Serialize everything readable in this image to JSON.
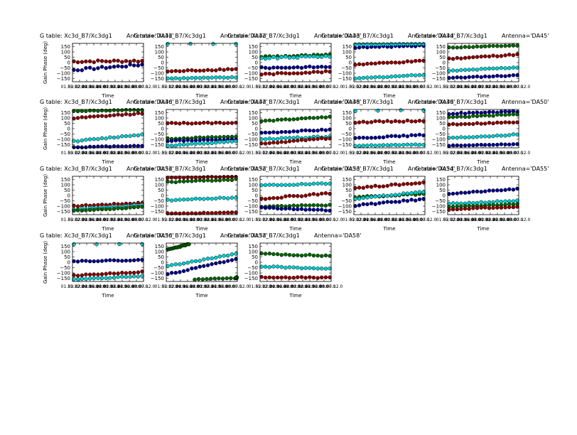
{
  "figure": {
    "title_prefix": "G table: Xc3d_B7/Xc3dg1",
    "xlabel": "Time",
    "ylabel": "Gain Phase (deg)",
    "xticks": [
      "01:55:12.0",
      "02:02:24.0",
      "02:09:36.0",
      "02:16:48.0",
      "02:24:00.0",
      "02:31:12.0",
      "02:38:24.0",
      "02:45:36.0",
      "02:52:48.0",
      "03:00:00.0",
      "03:07:12.0"
    ],
    "yticks": [
      "150",
      "100",
      "50",
      "0",
      "−50",
      "−100",
      "−150"
    ]
  },
  "colors": {
    "navy": "#00008b",
    "darkred": "#8b0000",
    "darkgreen": "#006400",
    "cyan": "#00ced1"
  },
  "chart_data": {
    "type": "scatter",
    "ylim": [
      -180,
      180
    ],
    "xlim": [
      0,
      1
    ],
    "grid": false,
    "legend": "none",
    "panels": [
      {
        "antenna": "Antenna='DA41'",
        "series": [
          {
            "color": "darkred",
            "start": 10,
            "end": 15,
            "wobble": 20
          },
          {
            "color": "navy",
            "start": -70,
            "end": -20,
            "wobble": 20
          }
        ]
      },
      {
        "antenna": "Antenna='DA42'",
        "series": [
          {
            "color": "cyan",
            "start": 175,
            "end": 175,
            "wobble": 3,
            "sparse": true
          },
          {
            "color": "darkred",
            "start": -85,
            "end": -60,
            "wobble": 12
          },
          {
            "color": "cyan",
            "start": -150,
            "end": -140,
            "wobble": 8
          }
        ]
      },
      {
        "antenna": "Antenna='DA43'",
        "series": [
          {
            "color": "darkgreen",
            "start": 55,
            "end": 70,
            "wobble": 15
          },
          {
            "color": "cyan",
            "start": 40,
            "end": 60,
            "wobble": 15
          },
          {
            "color": "navy",
            "start": -50,
            "end": -40,
            "wobble": 12
          },
          {
            "color": "darkred",
            "start": -110,
            "end": -85,
            "wobble": 12
          }
        ]
      },
      {
        "antenna": "Antenna='DA44'",
        "series": [
          {
            "color": "navy",
            "start": 140,
            "end": 160,
            "wobble": 10
          },
          {
            "color": "cyan",
            "start": 170,
            "end": 175,
            "wobble": 4
          },
          {
            "color": "darkred",
            "start": -20,
            "end": 15,
            "wobble": 10
          },
          {
            "color": "cyan",
            "start": -150,
            "end": -115,
            "wobble": 8
          }
        ]
      },
      {
        "antenna": "Antenna='DA45'",
        "series": [
          {
            "color": "darkgreen",
            "start": 140,
            "end": 160,
            "wobble": 6
          },
          {
            "color": "darkred",
            "start": 35,
            "end": 75,
            "wobble": 10
          },
          {
            "color": "cyan",
            "start": -80,
            "end": -45,
            "wobble": 10
          },
          {
            "color": "navy",
            "start": -145,
            "end": -120,
            "wobble": 8
          }
        ]
      },
      {
        "antenna": "Antenna='DA46'",
        "series": [
          {
            "color": "darkgreen",
            "start": 165,
            "end": 175,
            "wobble": 6
          },
          {
            "color": "darkred",
            "start": 95,
            "end": 145,
            "wobble": 12
          },
          {
            "color": "cyan",
            "start": -120,
            "end": -55,
            "wobble": 10
          },
          {
            "color": "navy",
            "start": -175,
            "end": -160,
            "wobble": 6
          }
        ]
      },
      {
        "antenna": "Antenna='DA47'",
        "series": [
          {
            "color": "darkred",
            "start": 50,
            "end": 55,
            "wobble": 10
          },
          {
            "color": "darkgreen",
            "start": -95,
            "end": -75,
            "wobble": 8
          },
          {
            "color": "navy",
            "start": -115,
            "end": -100,
            "wobble": 8
          },
          {
            "color": "cyan",
            "start": -160,
            "end": -120,
            "wobble": 10
          }
        ]
      },
      {
        "antenna": "Antenna='DA48'",
        "series": [
          {
            "color": "darkgreen",
            "start": 70,
            "end": 110,
            "wobble": 8
          },
          {
            "color": "navy",
            "start": -40,
            "end": -10,
            "wobble": 10
          },
          {
            "color": "cyan",
            "start": -100,
            "end": -75,
            "wobble": 10
          },
          {
            "color": "darkred",
            "start": -140,
            "end": -90,
            "wobble": 10
          }
        ]
      },
      {
        "antenna": "Antenna='DA49'",
        "series": [
          {
            "color": "cyan",
            "start": 165,
            "end": 175,
            "wobble": 4,
            "sparse": true
          },
          {
            "color": "darkred",
            "start": 60,
            "end": 75,
            "wobble": 12
          },
          {
            "color": "navy",
            "start": -90,
            "end": -60,
            "wobble": 10
          },
          {
            "color": "cyan",
            "start": -160,
            "end": -150,
            "wobble": 6
          }
        ]
      },
      {
        "antenna": "Antenna='DA50'",
        "series": [
          {
            "color": "navy",
            "start": 140,
            "end": 160,
            "wobble": 10
          },
          {
            "color": "darkgreen",
            "start": 105,
            "end": 135,
            "wobble": 10
          },
          {
            "color": "darkred",
            "start": 40,
            "end": 60,
            "wobble": 10
          },
          {
            "color": "cyan",
            "start": -90,
            "end": -55,
            "wobble": 10
          },
          {
            "color": "navy",
            "start": -160,
            "end": -145,
            "wobble": 6
          }
        ]
      },
      {
        "antenna": "Antenna='DA51'",
        "series": [
          {
            "color": "darkred",
            "start": -100,
            "end": -70,
            "wobble": 10
          },
          {
            "color": "cyan",
            "start": -130,
            "end": -90,
            "wobble": 10
          },
          {
            "color": "darkgreen",
            "start": -145,
            "end": -110,
            "wobble": 8
          }
        ]
      },
      {
        "antenna": "Antenna='DA52'",
        "series": [
          {
            "color": "darkred",
            "start": 165,
            "end": 175,
            "wobble": 5
          },
          {
            "color": "darkgreen",
            "start": 125,
            "end": 150,
            "wobble": 10
          },
          {
            "color": "cyan",
            "start": -45,
            "end": -20,
            "wobble": 10
          },
          {
            "color": "darkred",
            "start": -170,
            "end": -160,
            "wobble": 5
          }
        ]
      },
      {
        "antenna": "Antenna='DA53'",
        "series": [
          {
            "color": "cyan",
            "start": 95,
            "end": 110,
            "wobble": 10
          },
          {
            "color": "darkred",
            "start": -30,
            "end": 20,
            "wobble": 15
          },
          {
            "color": "darkgreen",
            "start": -105,
            "end": -90,
            "wobble": 10
          },
          {
            "color": "navy",
            "start": -115,
            "end": -140,
            "wobble": 8
          }
        ]
      },
      {
        "antenna": "Antenna='DA54'",
        "series": [
          {
            "color": "darkred",
            "start": 70,
            "end": 120,
            "wobble": 12
          },
          {
            "color": "darkgreen",
            "start": -15,
            "end": 15,
            "wobble": 12
          },
          {
            "color": "cyan",
            "start": -35,
            "end": 35,
            "wobble": 12
          },
          {
            "color": "navy",
            "start": -95,
            "end": -35,
            "wobble": 12
          }
        ]
      },
      {
        "antenna": "Antenna='DA55'",
        "series": [
          {
            "color": "navy",
            "start": 15,
            "end": 60,
            "wobble": 8
          },
          {
            "color": "cyan",
            "start": -80,
            "end": -50,
            "wobble": 10
          },
          {
            "color": "darkgreen",
            "start": -110,
            "end": -80,
            "wobble": 8
          },
          {
            "color": "darkred",
            "start": -130,
            "end": -105,
            "wobble": 8
          }
        ]
      },
      {
        "antenna": "Antenna='DA56'",
        "series": [
          {
            "color": "cyan",
            "start": 170,
            "end": 170,
            "wobble": 3,
            "sparse": true
          },
          {
            "color": "navy",
            "start": 10,
            "end": 20,
            "wobble": 8
          },
          {
            "color": "cyan",
            "start": -160,
            "end": -130,
            "wobble": 6
          },
          {
            "color": "darkred",
            "start": -125,
            "end": -90,
            "wobble": 8
          }
        ]
      },
      {
        "antenna": "Antenna='DA57'",
        "series": [
          {
            "color": "darkgreen",
            "start": 115,
            "end": 170,
            "wobble": 8,
            "span": 0.3
          },
          {
            "color": "cyan",
            "start": -40,
            "end": 80,
            "wobble": 10
          },
          {
            "color": "navy",
            "start": -115,
            "end": 30,
            "wobble": 10
          },
          {
            "color": "darkgreen",
            "start": -170,
            "end": -140,
            "wobble": 6,
            "from": 0.4
          }
        ]
      },
      {
        "antenna": "Antenna='DA58'",
        "series": [
          {
            "color": "darkgreen",
            "start": 80,
            "end": 60,
            "wobble": 12
          },
          {
            "color": "cyan",
            "start": -40,
            "end": -60,
            "wobble": 10
          },
          {
            "color": "darkred",
            "start": -140,
            "end": -145,
            "wobble": 8
          }
        ]
      }
    ]
  }
}
